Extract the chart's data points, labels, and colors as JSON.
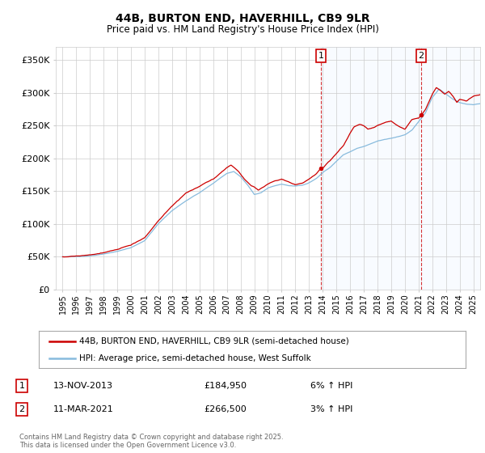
{
  "title": "44B, BURTON END, HAVERHILL, CB9 9LR",
  "subtitle": "Price paid vs. HM Land Registry's House Price Index (HPI)",
  "legend_line1": "44B, BURTON END, HAVERHILL, CB9 9LR (semi-detached house)",
  "legend_line2": "HPI: Average price, semi-detached house, West Suffolk",
  "annotation1_label": "1",
  "annotation1_date": "13-NOV-2013",
  "annotation1_price": "£184,950",
  "annotation1_hpi": "6% ↑ HPI",
  "annotation1_year": 2013.87,
  "annotation1_value": 184950,
  "annotation2_label": "2",
  "annotation2_date": "11-MAR-2021",
  "annotation2_price": "£266,500",
  "annotation2_hpi": "3% ↑ HPI",
  "annotation2_year": 2021.19,
  "annotation2_value": 266500,
  "red_color": "#cc0000",
  "blue_color": "#88bbdd",
  "background_color": "#ffffff",
  "grid_color": "#cccccc",
  "shade_color": "#ddeeff",
  "ylim": [
    0,
    370000
  ],
  "yticks": [
    0,
    50000,
    100000,
    150000,
    200000,
    250000,
    300000,
    350000
  ],
  "ytick_labels": [
    "£0",
    "£50K",
    "£100K",
    "£150K",
    "£200K",
    "£250K",
    "£300K",
    "£350K"
  ],
  "xmin": 1995,
  "xmax": 2025.5,
  "copyright_text": "Contains HM Land Registry data © Crown copyright and database right 2025.\nThis data is licensed under the Open Government Licence v3.0."
}
